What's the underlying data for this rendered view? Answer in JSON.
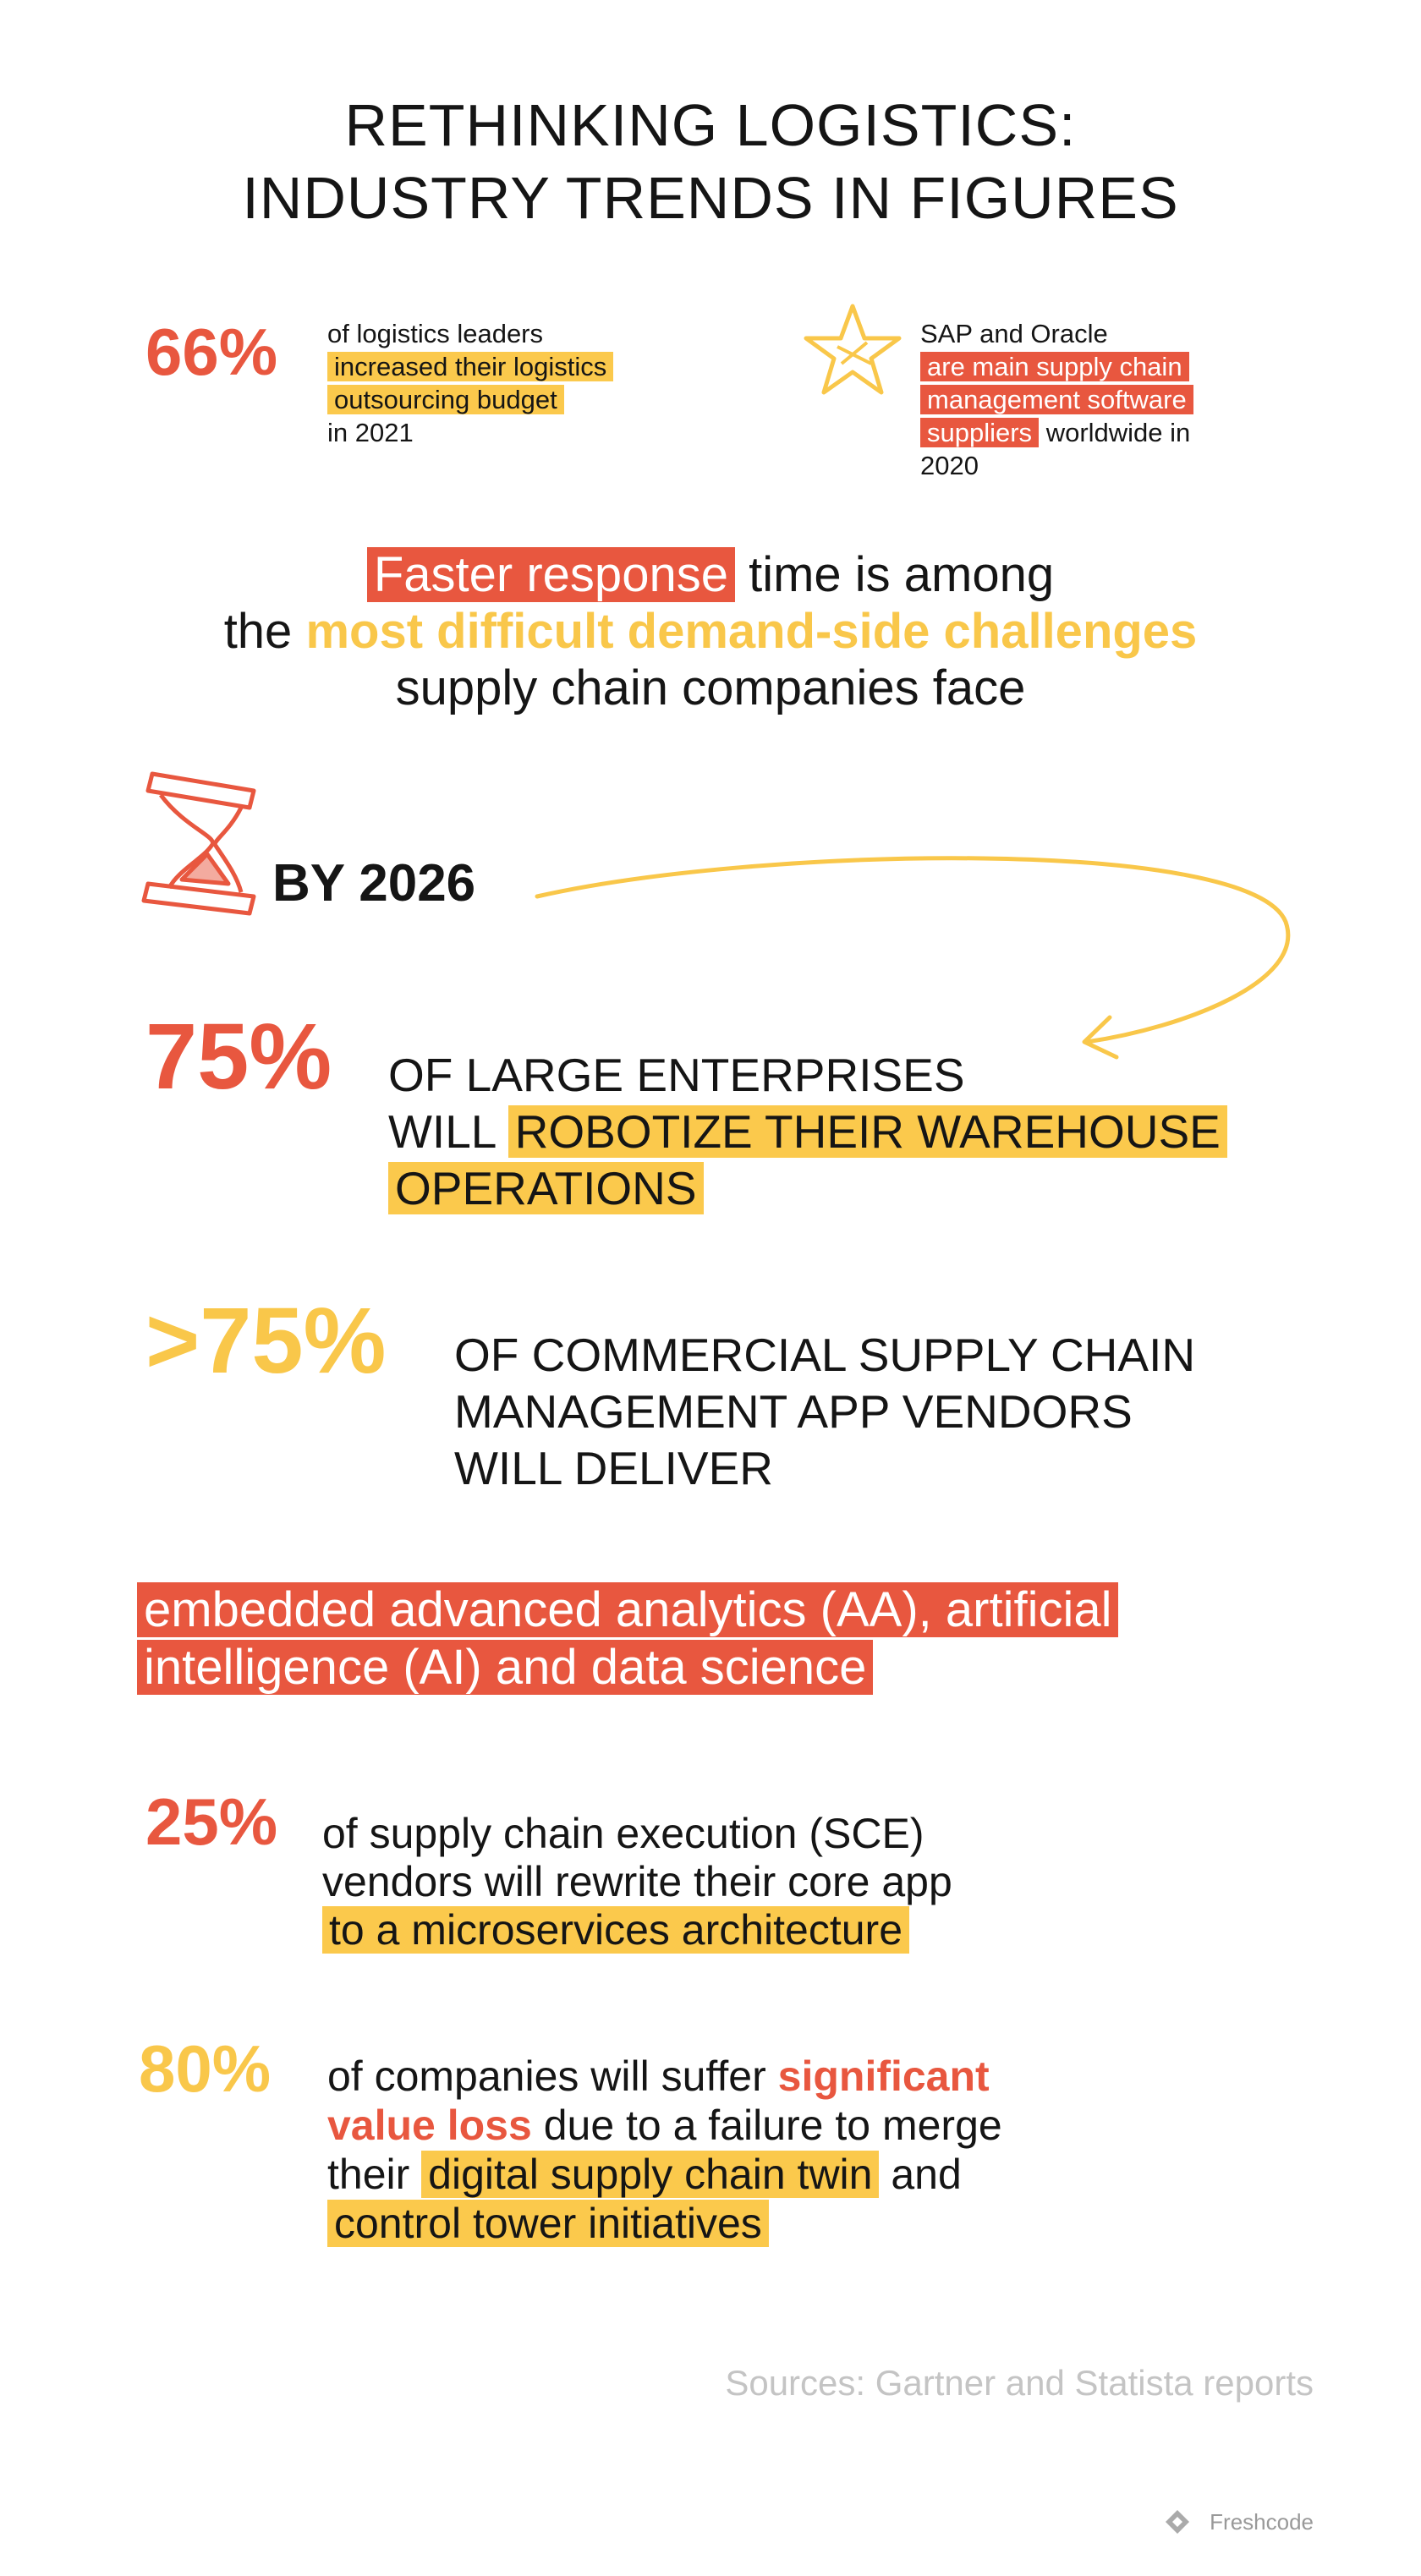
{
  "title": [
    "RETHINKING LOGISTICS:",
    "INDUSTRY TRENDS IN FIGURES"
  ],
  "facts": [
    {
      "figure": "66%",
      "lines": [
        "of logistics leaders",
        "increased their logistics",
        "outsourcing budget",
        "in 2021"
      ]
    },
    {
      "lines": [
        "SAP and Oracle",
        "are main supply chain",
        "management software",
        "suppliers",
        "worldwide in",
        "2020"
      ]
    }
  ],
  "callout": [
    "Faster response",
    "time is among",
    "the",
    "most difficult demand-side challenges",
    "supply chain companies face"
  ],
  "forecast": {
    "heading": "BY 2026",
    "items": [
      {
        "figure": "75%",
        "text": [
          "OF LARGE ENTERPRISES",
          "WILL",
          "ROBOTIZE THEIR WAREHOUSE",
          "OPERATIONS"
        ]
      },
      {
        "figure": ">75%",
        "text": [
          "OF COMMERCIAL SUPPLY CHAIN",
          "MANAGEMENT APP VENDORS",
          "WILL DELIVER"
        ],
        "highlight": [
          "embedded advanced analytics (AA), artificial",
          "intelligence (AI) and data science"
        ]
      },
      {
        "figure": "25%",
        "text": [
          "of supply chain execution (SCE)",
          "vendors will rewrite their core app",
          "to a microservices architecture"
        ]
      },
      {
        "figure": "80%",
        "text": [
          "of companies will suffer",
          "significant",
          "value loss",
          "due to a failure to merge",
          "their",
          "digital supply chain twin",
          "and",
          "control tower initiatives"
        ]
      }
    ]
  },
  "sources": "Sources: Gartner and Statista reports",
  "brand": "Freshcode"
}
